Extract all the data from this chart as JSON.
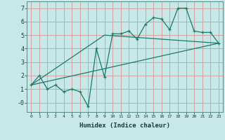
{
  "xlabel": "Humidex (Indice chaleur)",
  "bg_color": "#c8e8e8",
  "line_color": "#1a7a6e",
  "grid_color": "#d4a0a0",
  "xlim": [
    -0.5,
    23.5
  ],
  "ylim": [
    -0.7,
    7.5
  ],
  "xticks": [
    0,
    1,
    2,
    3,
    4,
    5,
    6,
    7,
    8,
    9,
    10,
    11,
    12,
    13,
    14,
    15,
    16,
    17,
    18,
    19,
    20,
    21,
    22,
    23
  ],
  "yticks": [
    0,
    1,
    2,
    3,
    4,
    5,
    6,
    7
  ],
  "ytick_labels": [
    "-0",
    "1",
    "2",
    "3",
    "4",
    "5",
    "6",
    "7"
  ],
  "line1_x": [
    0,
    1,
    2,
    3,
    4,
    5,
    6,
    7,
    8,
    9,
    10,
    11,
    12,
    13,
    14,
    15,
    16,
    17,
    18,
    19,
    20,
    21,
    22,
    23
  ],
  "line1_y": [
    1.3,
    2.0,
    1.0,
    1.3,
    0.8,
    1.0,
    0.8,
    -0.3,
    4.0,
    1.9,
    5.1,
    5.1,
    5.3,
    4.7,
    5.8,
    6.3,
    6.2,
    5.4,
    7.0,
    7.0,
    5.3,
    5.2,
    5.2,
    4.4
  ],
  "line2_x": [
    0,
    23
  ],
  "line2_y": [
    1.3,
    4.4
  ],
  "line3_x": [
    0,
    9,
    23
  ],
  "line3_y": [
    1.3,
    5.0,
    4.4
  ]
}
